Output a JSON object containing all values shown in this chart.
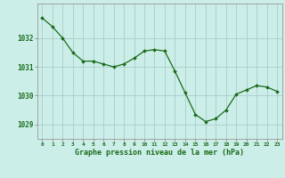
{
  "x": [
    0,
    1,
    2,
    3,
    4,
    5,
    6,
    7,
    8,
    9,
    10,
    11,
    12,
    13,
    14,
    15,
    16,
    17,
    18,
    19,
    20,
    21,
    22,
    23
  ],
  "y": [
    1032.7,
    1032.4,
    1032.0,
    1031.5,
    1031.2,
    1031.2,
    1031.1,
    1031.0,
    1031.1,
    1031.3,
    1031.55,
    1031.6,
    1031.55,
    1030.85,
    1030.1,
    1029.35,
    1029.1,
    1029.2,
    1029.5,
    1030.05,
    1030.2,
    1030.35,
    1030.3,
    1030.15
  ],
  "line_color": "#1a6b1a",
  "marker": "D",
  "marker_size": 1.8,
  "bg_color": "#cceee8",
  "grid_color": "#aacccc",
  "xlabel": "Graphe pression niveau de la mer (hPa)",
  "xlabel_color": "#1a6b1a",
  "tick_label_color": "#1a6b1a",
  "ylim": [
    1028.5,
    1033.2
  ],
  "yticks": [
    1029,
    1030,
    1031,
    1032
  ],
  "xlim": [
    -0.5,
    23.5
  ],
  "xticks": [
    0,
    1,
    2,
    3,
    4,
    5,
    6,
    7,
    8,
    9,
    10,
    11,
    12,
    13,
    14,
    15,
    16,
    17,
    18,
    19,
    20,
    21,
    22,
    23
  ]
}
